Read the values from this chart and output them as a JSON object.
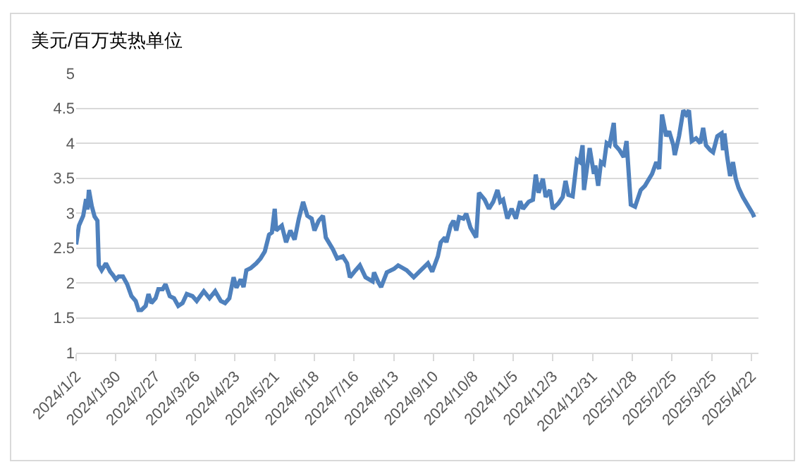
{
  "chart_data": {
    "type": "line",
    "ylabel": "美元/百万英热单位",
    "x": [
      "2024-01-02",
      "2024-01-04",
      "2024-01-07",
      "2024-01-09",
      "2024-01-10",
      "2024-01-11",
      "2024-01-13",
      "2024-01-15",
      "2024-01-17",
      "2024-01-18",
      "2024-01-20",
      "2024-01-23",
      "2024-01-26",
      "2024-01-28",
      "2024-01-30",
      "2024-02-01",
      "2024-02-04",
      "2024-02-07",
      "2024-02-10",
      "2024-02-13",
      "2024-02-15",
      "2024-02-17",
      "2024-02-20",
      "2024-02-22",
      "2024-02-24",
      "2024-02-27",
      "2024-02-29",
      "2024-03-03",
      "2024-03-05",
      "2024-03-08",
      "2024-03-11",
      "2024-03-14",
      "2024-03-17",
      "2024-03-20",
      "2024-03-24",
      "2024-03-27",
      "2024-04-01",
      "2024-04-05",
      "2024-04-09",
      "2024-04-13",
      "2024-04-16",
      "2024-04-19",
      "2024-04-22",
      "2024-04-24",
      "2024-04-27",
      "2024-04-29",
      "2024-05-01",
      "2024-05-04",
      "2024-05-08",
      "2024-05-11",
      "2024-05-14",
      "2024-05-17",
      "2024-05-19",
      "2024-05-21",
      "2024-05-22",
      "2024-05-26",
      "2024-05-29",
      "2024-06-01",
      "2024-06-04",
      "2024-06-07",
      "2024-06-10",
      "2024-06-13",
      "2024-06-16",
      "2024-06-18",
      "2024-06-21",
      "2024-06-24",
      "2024-06-26",
      "2024-07-01",
      "2024-07-04",
      "2024-07-08",
      "2024-07-11",
      "2024-07-13",
      "2024-07-17",
      "2024-07-20",
      "2024-07-24",
      "2024-07-29",
      "2024-07-30",
      "2024-08-02",
      "2024-08-04",
      "2024-08-08",
      "2024-08-13",
      "2024-08-16",
      "2024-08-22",
      "2024-08-27",
      "2024-09-01",
      "2024-09-06",
      "2024-09-09",
      "2024-09-13",
      "2024-09-15",
      "2024-09-18",
      "2024-09-19",
      "2024-09-22",
      "2024-09-24",
      "2024-09-26",
      "2024-09-28",
      "2024-10-01",
      "2024-10-03",
      "2024-10-06",
      "2024-10-10",
      "2024-10-12",
      "2024-10-16",
      "2024-10-19",
      "2024-10-22",
      "2024-10-25",
      "2024-10-27",
      "2024-10-29",
      "2024-11-01",
      "2024-11-04",
      "2024-11-07",
      "2024-11-10",
      "2024-11-12",
      "2024-11-16",
      "2024-11-19",
      "2024-11-21",
      "2024-11-23",
      "2024-11-26",
      "2024-11-28",
      "2024-12-01",
      "2024-12-03",
      "2024-12-07",
      "2024-12-10",
      "2024-12-12",
      "2024-12-14",
      "2024-12-17",
      "2024-12-20",
      "2024-12-22",
      "2024-12-24",
      "2024-12-25",
      "2024-12-29",
      "2025-01-01",
      "2025-01-02",
      "2025-01-04",
      "2025-01-06",
      "2025-01-08",
      "2025-01-10",
      "2025-01-12",
      "2025-01-15",
      "2025-01-16",
      "2025-01-19",
      "2025-01-22",
      "2025-01-24",
      "2025-01-25",
      "2025-01-27",
      "2025-01-30",
      "2025-02-03",
      "2025-02-06",
      "2025-02-08",
      "2025-02-11",
      "2025-02-14",
      "2025-02-16",
      "2025-02-18",
      "2025-02-21",
      "2025-02-23",
      "2025-02-26",
      "2025-02-27",
      "2025-03-02",
      "2025-03-05",
      "2025-03-07",
      "2025-03-09",
      "2025-03-11",
      "2025-03-14",
      "2025-03-17",
      "2025-03-19",
      "2025-03-21",
      "2025-03-24",
      "2025-03-26",
      "2025-03-29",
      "2025-04-01",
      "2025-04-02",
      "2025-04-03",
      "2025-04-05",
      "2025-04-07",
      "2025-04-09",
      "2025-04-11",
      "2025-04-13",
      "2025-04-16",
      "2025-04-20",
      "2025-04-23",
      "2025-04-24"
    ],
    "series": [
      {
        "color": "#4f81bd",
        "values": [
          2.55,
          2.82,
          2.96,
          3.2,
          3.05,
          3.33,
          3.1,
          2.95,
          2.89,
          2.25,
          2.18,
          2.28,
          2.16,
          2.11,
          2.05,
          2.09,
          2.09,
          1.98,
          1.81,
          1.74,
          1.61,
          1.61,
          1.67,
          1.84,
          1.71,
          1.78,
          1.91,
          1.91,
          1.98,
          1.81,
          1.78,
          1.67,
          1.71,
          1.84,
          1.81,
          1.74,
          1.88,
          1.78,
          1.88,
          1.74,
          1.71,
          1.78,
          2.08,
          1.93,
          2.05,
          1.94,
          2.18,
          2.21,
          2.28,
          2.35,
          2.45,
          2.69,
          2.72,
          3.06,
          2.75,
          2.82,
          2.58,
          2.75,
          2.62,
          2.92,
          3.16,
          2.96,
          2.92,
          2.75,
          2.89,
          2.96,
          2.65,
          2.48,
          2.35,
          2.38,
          2.28,
          2.08,
          2.18,
          2.25,
          2.08,
          2.02,
          2.15,
          2.01,
          1.94,
          2.15,
          2.2,
          2.25,
          2.18,
          2.08,
          2.18,
          2.28,
          2.16,
          2.38,
          2.58,
          2.65,
          2.58,
          2.82,
          2.89,
          2.75,
          2.94,
          2.92,
          2.99,
          2.79,
          2.65,
          3.29,
          3.19,
          3.06,
          3.16,
          3.33,
          3.16,
          3.19,
          2.92,
          3.06,
          2.92,
          3.17,
          3.06,
          3.16,
          3.19,
          3.55,
          3.29,
          3.49,
          3.23,
          3.33,
          3.06,
          3.14,
          3.23,
          3.46,
          3.26,
          3.24,
          3.76,
          3.73,
          3.97,
          3.33,
          3.93,
          3.56,
          3.68,
          3.39,
          3.73,
          3.7,
          4.0,
          3.97,
          4.29,
          3.97,
          3.9,
          3.8,
          4.03,
          3.73,
          3.12,
          3.09,
          3.33,
          3.39,
          3.46,
          3.56,
          3.73,
          3.63,
          4.41,
          4.1,
          4.17,
          3.97,
          3.83,
          4.1,
          4.47,
          4.41,
          4.47,
          4.03,
          4.07,
          4.0,
          4.22,
          3.97,
          3.9,
          3.87,
          4.1,
          4.14,
          3.9,
          4.14,
          3.8,
          3.53,
          3.73,
          3.49,
          3.36,
          3.23,
          3.09,
          2.99,
          2.94
        ]
      }
    ],
    "xlim": [
      "2024-01-02",
      "2025-04-27"
    ],
    "xticks": [
      {
        "value": "2024-01-02",
        "label": "2024/1/2"
      },
      {
        "value": "2024-01-30",
        "label": "2024/1/30"
      },
      {
        "value": "2024-02-27",
        "label": "2024/2/27"
      },
      {
        "value": "2024-03-26",
        "label": "2024/3/26"
      },
      {
        "value": "2024-04-23",
        "label": "2024/4/23"
      },
      {
        "value": "2024-05-21",
        "label": "2024/5/21"
      },
      {
        "value": "2024-06-18",
        "label": "2024/6/18"
      },
      {
        "value": "2024-07-16",
        "label": "2024/7/16"
      },
      {
        "value": "2024-08-13",
        "label": "2024/8/13"
      },
      {
        "value": "2024-09-10",
        "label": "2024/9/10"
      },
      {
        "value": "2024-10-08",
        "label": "2024/10/8"
      },
      {
        "value": "2024-11-05",
        "label": "2024/11/5"
      },
      {
        "value": "2024-12-03",
        "label": "2024/12/3"
      },
      {
        "value": "2024-12-31",
        "label": "2024/12/31"
      },
      {
        "value": "2025-01-28",
        "label": "2025/1/28"
      },
      {
        "value": "2025-02-25",
        "label": "2025/2/25"
      },
      {
        "value": "2025-03-25",
        "label": "2025/3/25"
      },
      {
        "value": "2025-04-22",
        "label": "2025/4/22"
      }
    ],
    "ylim": [
      1,
      5
    ],
    "yticks": [
      1,
      1.5,
      2,
      2.5,
      3,
      3.5,
      4,
      4.5,
      5
    ],
    "grid": "y",
    "marker": "none",
    "line_style": "solid"
  }
}
